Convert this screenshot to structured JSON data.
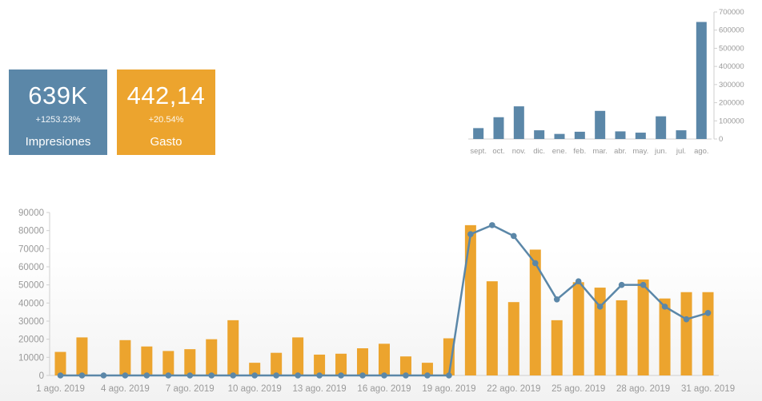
{
  "colors": {
    "blue": "#5b87a8",
    "orange": "#eca42e",
    "axis": "#cfcfcf",
    "text": "#9a9a9a"
  },
  "kpis": [
    {
      "value": "639K",
      "change": "+1253.23%",
      "label": "Impresiones",
      "color": "#5b87a8"
    },
    {
      "value": "442,14",
      "change": "+20.54%",
      "label": "Gasto",
      "color": "#eca42e"
    }
  ],
  "chart_data": [
    {
      "type": "bar",
      "categories": [
        "sept.",
        "oct.",
        "nov.",
        "dic.",
        "ene.",
        "feb.",
        "mar.",
        "abr.",
        "may.",
        "jun.",
        "jul.",
        "ago."
      ],
      "values": [
        60000,
        120000,
        180000,
        48000,
        28000,
        40000,
        155000,
        42000,
        35000,
        125000,
        48000,
        645000
      ],
      "ylim": [
        0,
        700000
      ],
      "yticks": [
        "0",
        "100000",
        "200000",
        "300000",
        "400000",
        "500000",
        "600000",
        "700000"
      ],
      "ytick_values": [
        0,
        100000,
        200000,
        300000,
        400000,
        500000,
        600000,
        700000
      ],
      "y_axis_side": "right",
      "color": "#5b87a8"
    },
    {
      "type": "bar+line",
      "x": [
        "1 ago. 2019",
        "2 ago. 2019",
        "3 ago. 2019",
        "4 ago. 2019",
        "5 ago. 2019",
        "6 ago. 2019",
        "7 ago. 2019",
        "8 ago. 2019",
        "9 ago. 2019",
        "10 ago. 2019",
        "11 ago. 2019",
        "12 ago. 2019",
        "13 ago. 2019",
        "14 ago. 2019",
        "15 ago. 2019",
        "16 ago. 2019",
        "17 ago. 2019",
        "18 ago. 2019",
        "19 ago. 2019",
        "20 ago. 2019",
        "21 ago. 2019",
        "22 ago. 2019",
        "23 ago. 2019",
        "24 ago. 2019",
        "25 ago. 2019",
        "26 ago. 2019",
        "27 ago. 2019",
        "28 ago. 2019",
        "29 ago. 2019",
        "30 ago. 2019",
        "31 ago. 2019"
      ],
      "xticks": [
        "1 ago. 2019",
        "4 ago. 2019",
        "7 ago. 2019",
        "10 ago. 2019",
        "13 ago. 2019",
        "16 ago. 2019",
        "19 ago. 2019",
        "22 ago. 2019",
        "25 ago. 2019",
        "28 ago. 2019",
        "31 ago. 2019"
      ],
      "xtick_index": [
        0,
        3,
        6,
        9,
        12,
        15,
        18,
        21,
        24,
        27,
        30
      ],
      "bars": [
        13000,
        21000,
        0,
        19500,
        16000,
        13500,
        14500,
        20000,
        30500,
        7000,
        12500,
        21000,
        11500,
        12000,
        15000,
        17500,
        10500,
        7000,
        20500,
        83000,
        52000,
        40500,
        69500,
        30500,
        51500,
        48500,
        41500,
        53000,
        42500,
        46000,
        46000
      ],
      "line": [
        0,
        0,
        0,
        0,
        0,
        0,
        0,
        0,
        0,
        0,
        0,
        0,
        0,
        0,
        0,
        0,
        0,
        0,
        0,
        78000,
        83000,
        77000,
        62000,
        42000,
        52000,
        38000,
        50000,
        50000,
        38000,
        31000,
        34500
      ],
      "ylim": [
        0,
        90000
      ],
      "yticks": [
        "0",
        "10000",
        "20000",
        "30000",
        "40000",
        "50000",
        "60000",
        "70000",
        "80000",
        "90000"
      ],
      "ytick_values": [
        0,
        10000,
        20000,
        30000,
        40000,
        50000,
        60000,
        70000,
        80000,
        90000
      ],
      "bar_color": "#eca42e",
      "line_color": "#5b87a8"
    }
  ]
}
